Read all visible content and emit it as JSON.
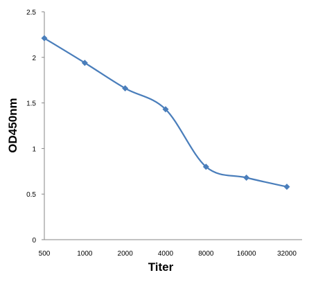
{
  "chart_data": {
    "type": "line",
    "title": "",
    "xlabel": "Titer",
    "ylabel": "OD450nm",
    "categories": [
      "500",
      "1000",
      "2000",
      "4000",
      "8000",
      "16000",
      "32000"
    ],
    "series": [
      {
        "values": [
          2.21,
          1.94,
          1.66,
          1.43,
          0.8,
          0.68,
          0.58
        ],
        "color": "#4a7ebb",
        "marker": "diamond",
        "smooth": true
      }
    ],
    "yticks": [
      "0",
      "0.5",
      "1",
      "1.5",
      "2",
      "2.5"
    ],
    "ylim": [
      0,
      2.5
    ],
    "grid": false,
    "legend": "none"
  }
}
